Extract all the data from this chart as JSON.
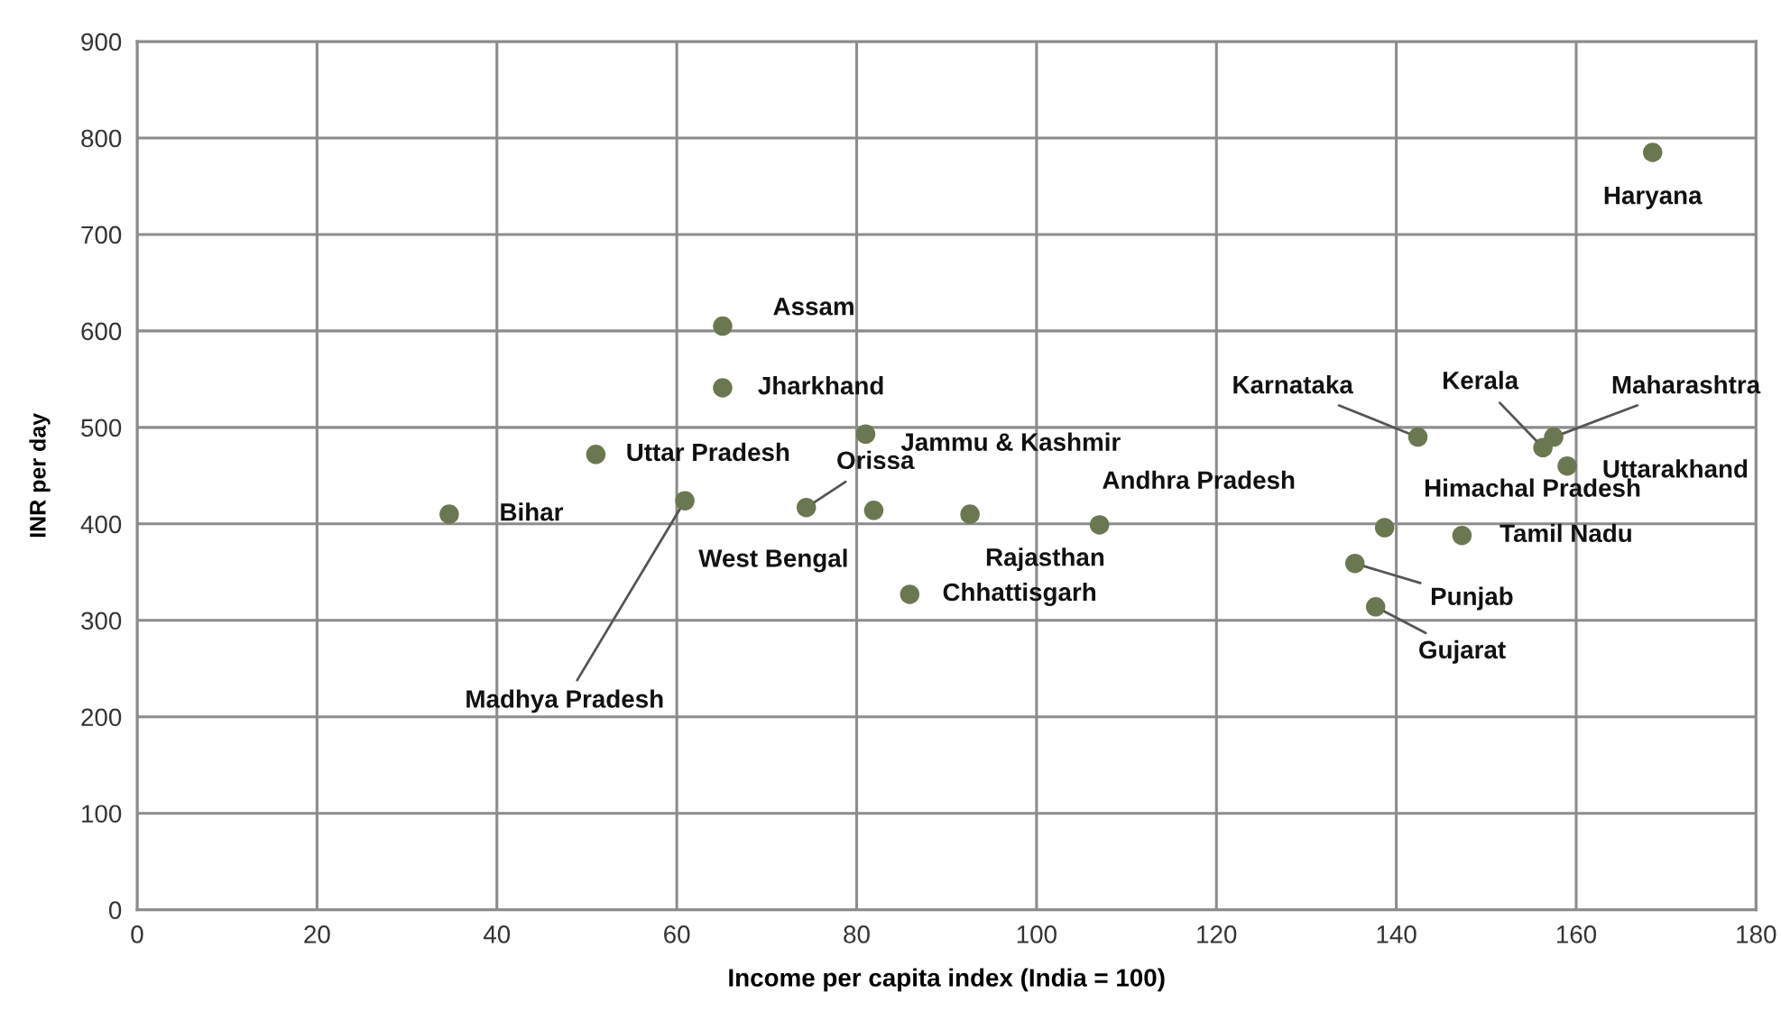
{
  "chart_data": {
    "type": "scatter",
    "xlabel": "Income per capita index (India = 100)",
    "ylabel": "INR per day",
    "xlim": [
      0,
      180
    ],
    "ylim": [
      0,
      900
    ],
    "xticks": [
      0,
      20,
      40,
      60,
      80,
      100,
      120,
      140,
      160,
      180
    ],
    "yticks": [
      0,
      100,
      200,
      300,
      400,
      500,
      600,
      700,
      800,
      900
    ],
    "grid": true,
    "legend": false,
    "marker": "circle",
    "series": [
      {
        "color": "#6b7750",
        "x": [
          34.7,
          51.0,
          60.9,
          65.1,
          65.1,
          81.0,
          74.4,
          81.9,
          92.6,
          107.0,
          85.9,
          142.4,
          156.3,
          157.5,
          159.0,
          138.7,
          147.3,
          135.4,
          137.7,
          168.5
        ],
        "values": [
          410,
          472,
          424,
          605,
          541,
          493,
          417,
          414,
          410,
          399,
          327,
          490,
          479,
          490,
          460,
          396,
          388,
          359,
          314,
          785
        ]
      }
    ],
    "annotations": [
      {
        "text": "Bihar",
        "x": 34.7,
        "y": 410
      },
      {
        "text": "Uttar Pradesh",
        "x": 51.0,
        "y": 472
      },
      {
        "text": "Madhya Pradesh",
        "x": 60.9,
        "y": 424
      },
      {
        "text": "Assam",
        "x": 65.1,
        "y": 605
      },
      {
        "text": "Jharkhand",
        "x": 65.1,
        "y": 541
      },
      {
        "text": "Jammu & Kashmir",
        "x": 81.0,
        "y": 493
      },
      {
        "text": "Orissa",
        "x": 74.4,
        "y": 417
      },
      {
        "text": "West Bengal",
        "x": 81.9,
        "y": 414
      },
      {
        "text": "Rajasthan",
        "x": 92.6,
        "y": 410
      },
      {
        "text": "Andhra Pradesh",
        "x": 107.0,
        "y": 399
      },
      {
        "text": "Chhattisgarh",
        "x": 85.9,
        "y": 327
      },
      {
        "text": "Karnataka",
        "x": 142.4,
        "y": 490
      },
      {
        "text": "Kerala",
        "x": 156.3,
        "y": 479
      },
      {
        "text": "Maharashtra",
        "x": 157.5,
        "y": 490
      },
      {
        "text": "Uttarakhand",
        "x": 159.0,
        "y": 460
      },
      {
        "text": "Himachal Pradesh",
        "x": 138.7,
        "y": 396
      },
      {
        "text": "Tamil Nadu",
        "x": 147.3,
        "y": 388
      },
      {
        "text": "Punjab",
        "x": 135.4,
        "y": 359
      },
      {
        "text": "Gujarat",
        "x": 137.7,
        "y": 314
      },
      {
        "text": "Haryana",
        "x": 168.5,
        "y": 785
      }
    ]
  }
}
